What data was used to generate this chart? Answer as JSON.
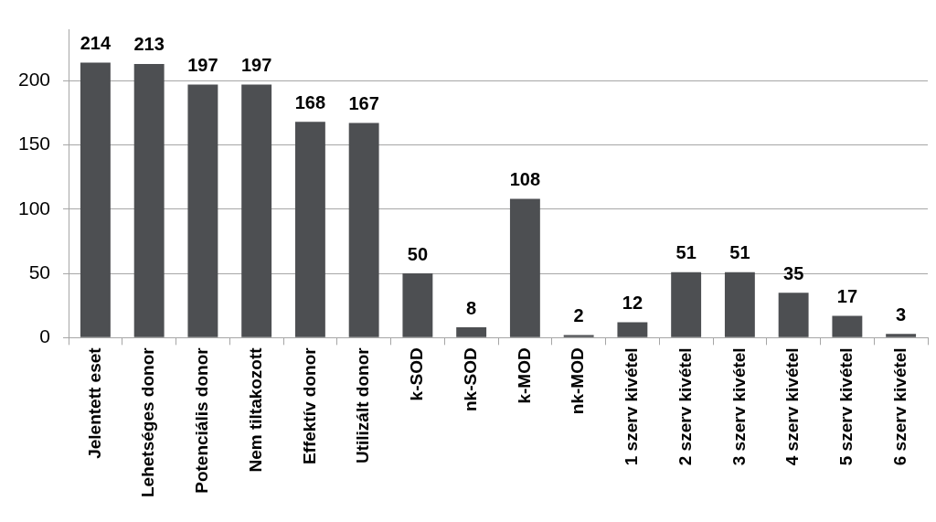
{
  "chart_data": {
    "type": "bar",
    "categories": [
      "Jelentett eset",
      "Lehetséges donor",
      "Potenciális donor",
      "Nem tiltakozott",
      "Effektív donor",
      "Utilizált donor",
      "k-SOD",
      "nk-SOD",
      "k-MOD",
      "nk-MOD",
      "1 szerv kivétel",
      "2 szerv kivétel",
      "3 szerv kivétel",
      "4 szerv kivétel",
      "5 szerv kivétel",
      "6 szerv kivétel"
    ],
    "values": [
      214,
      213,
      197,
      197,
      168,
      167,
      50,
      8,
      108,
      2,
      12,
      51,
      51,
      35,
      17,
      3
    ],
    "color": "#4d4f52",
    "ylim": [
      0,
      240
    ],
    "yticks": [
      0,
      50,
      100,
      150,
      200
    ],
    "grid": "y",
    "data_labels": true
  }
}
